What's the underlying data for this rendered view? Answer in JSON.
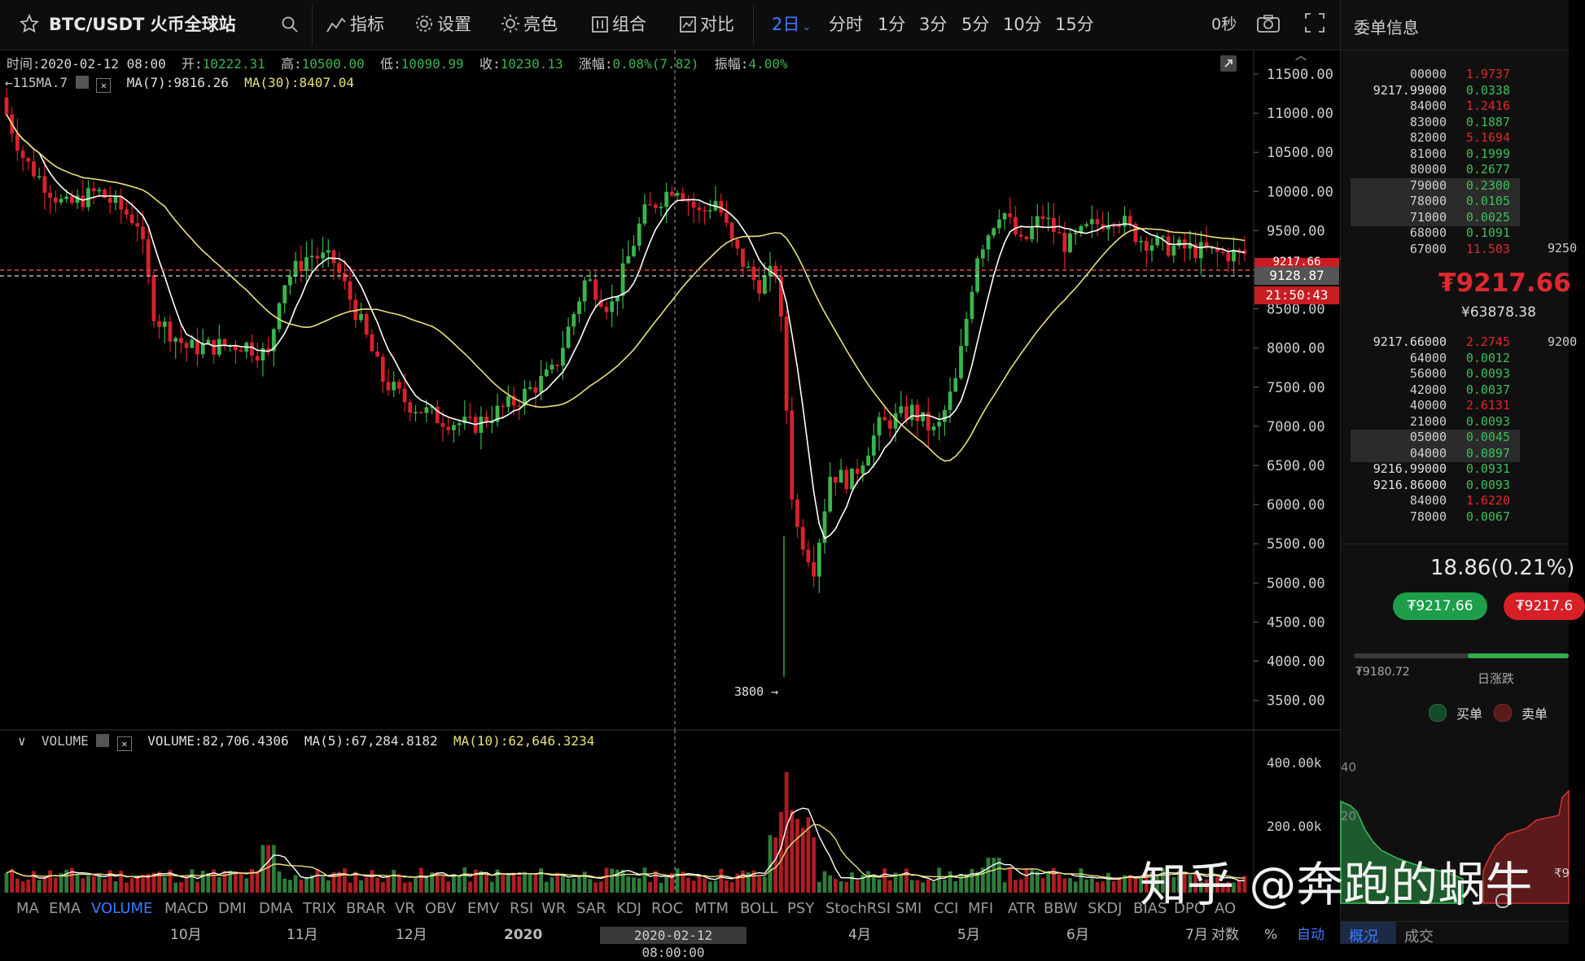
{
  "toolbar": {
    "symbol": "BTC/USDT 火币全球站",
    "items": [
      "指标",
      "设置",
      "亮色",
      "组合",
      "对比"
    ],
    "periods": [
      "2日",
      "分时",
      "1分",
      "3分",
      "5分",
      "10分",
      "15分"
    ],
    "active_period": "2日",
    "seconds": "0秒"
  },
  "info": {
    "time_label": "时间:",
    "time": "2020-02-12 08:00",
    "open_label": "开:",
    "open": "10222.31",
    "high_label": "高:",
    "high": "10500.00",
    "low_label": "低:",
    "low": "10090.99",
    "close_label": "收:",
    "close": "10230.13",
    "change_label": "涨幅:",
    "change": "0.08%(7.82)",
    "amp_label": "振幅:",
    "amp": "4.00%",
    "ma_prefix": "←115MA.7",
    "ma7": "MA(7):9816.26",
    "ma30": "MA(30):8407.04"
  },
  "price_axis": [
    "11500.00",
    "11000.00",
    "10500.00",
    "10000.00",
    "9500.00",
    "9000.00",
    "8500.00",
    "8000.00",
    "7500.00",
    "7000.00",
    "6500.00",
    "6000.00",
    "5500.00",
    "5000.00",
    "4500.00",
    "4000.00",
    "3500.00"
  ],
  "price_tags": {
    "current": "9128.87",
    "countdown": "21:50:43",
    "partial": "9217.66"
  },
  "low_marker": "3800 →",
  "volume": {
    "title": "VOLUME",
    "value": "VOLUME:82,706.4306",
    "ma5": "MA(5):67,284.8182",
    "ma10": "MA(10):62,646.3234",
    "axis": [
      "400.00k",
      "200.00k"
    ]
  },
  "indicators": [
    "MA",
    "EMA",
    "VOLUME",
    "MACD",
    "DMI",
    "DMA",
    "TRIX",
    "BRAR",
    "VR",
    "OBV",
    "EMV",
    "RSI",
    "WR",
    "SAR",
    "KDJ",
    "ROC",
    "MTM",
    "BOLL",
    "PSY",
    "StochRSI",
    "SMI",
    "CCI",
    "MFI",
    "ATR",
    "BBW",
    "SKDJ",
    "BIAS",
    "DPO",
    "AO"
  ],
  "active_indicator": "VOLUME",
  "months": [
    "10月",
    "11月",
    "12月",
    "2020",
    "4月",
    "5月",
    "6月",
    "7月"
  ],
  "crosshair_time": "2020-02-12 08:00:00",
  "axis_mode": [
    "对数",
    "%",
    "自动"
  ],
  "side": {
    "title": "委单信息",
    "asks": [
      {
        "price": "00000",
        "qty": "1.9737",
        "hl": false
      },
      {
        "price": "9217.99000",
        "qty": "0.0338",
        "hl": false
      },
      {
        "price": "84000",
        "qty": "1.2416",
        "hl": false
      },
      {
        "price": "83000",
        "qty": "0.1887",
        "hl": false
      },
      {
        "price": "82000",
        "qty": "5.1694",
        "hl": false
      },
      {
        "price": "81000",
        "qty": "0.1999",
        "hl": false
      },
      {
        "price": "80000",
        "qty": "0.2677",
        "hl": false
      },
      {
        "price": "79000",
        "qty": "0.2300",
        "hl": true
      },
      {
        "price": "78000",
        "qty": "0.0105",
        "hl": true
      },
      {
        "price": "71000",
        "qty": "0.0025",
        "hl": true
      },
      {
        "price": "68000",
        "qty": "0.1091",
        "hl": false
      },
      {
        "price": "67000",
        "qty": "11.503",
        "hl": false
      }
    ],
    "ask_extra": "9250",
    "last_price": "₮9217.66",
    "last_cny": "¥63878.38",
    "bids": [
      {
        "price": "9217.66000",
        "qty": "2.2745",
        "hl": false
      },
      {
        "price": "64000",
        "qty": "0.0012",
        "hl": false
      },
      {
        "price": "56000",
        "qty": "0.0093",
        "hl": false
      },
      {
        "price": "42000",
        "qty": "0.0037",
        "hl": false
      },
      {
        "price": "40000",
        "qty": "2.6131",
        "hl": false
      },
      {
        "price": "21000",
        "qty": "0.0093",
        "hl": false
      },
      {
        "price": "05000",
        "qty": "0.0045",
        "hl": true
      },
      {
        "price": "04000",
        "qty": "0.0897",
        "hl": true
      },
      {
        "price": "9216.99000",
        "qty": "0.0931",
        "hl": false
      },
      {
        "price": "9216.86000",
        "qty": "0.0093",
        "hl": false
      },
      {
        "price": "84000",
        "qty": "1.6220",
        "hl": false
      },
      {
        "price": "78000",
        "qty": "0.0067",
        "hl": false
      }
    ],
    "bid_extra": "9200",
    "change": "18.86(0.21%)",
    "buy_price": "₮9217.66",
    "sell_price": "₮9217.6",
    "low_price": "₮9180.72",
    "daily_label": "日涨跌",
    "buy_label": "买单",
    "sell_label": "卖单",
    "depth_left": "40",
    "depth_mid": "20",
    "depth_right": "₹9",
    "tabs": [
      "概况",
      "成交"
    ]
  },
  "watermark": "知乎 @奔跑的蜗牛",
  "colors": {
    "up": "#39b54a",
    "down": "#d9222a",
    "ma7": "#ffffff",
    "ma30": "#e8e07a",
    "accent": "#3d7cff"
  }
}
